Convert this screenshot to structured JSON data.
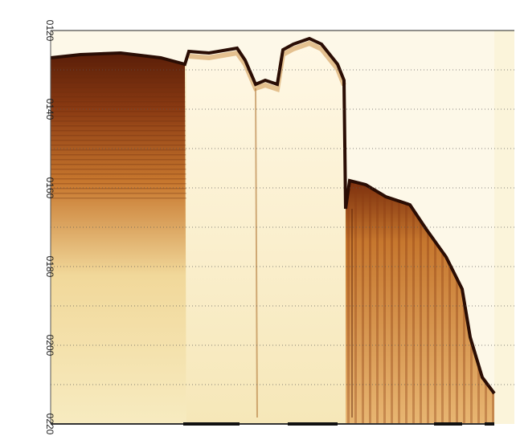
{
  "axis": {
    "labels": [
      "0120",
      "0140",
      "0160",
      "0180",
      "0200",
      "0220"
    ]
  }
}
